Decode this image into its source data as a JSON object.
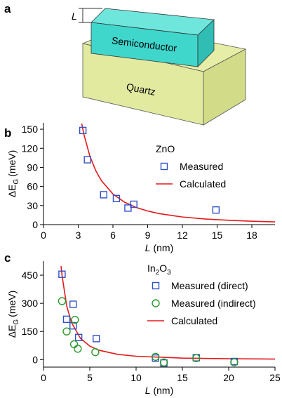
{
  "diagram": {
    "panel": "a",
    "length_label": "L",
    "top_block": "Semiconductor",
    "bottom_block": "Quartz"
  },
  "chart_data": [
    {
      "type": "scatter",
      "panel": "b",
      "xlabel": {
        "var": "L",
        "unit": "(nm)"
      },
      "ylabel": {
        "main": "ΔE",
        "sub": "G",
        "unit": "(meV)"
      },
      "legend_title_parts": [
        "ZnO"
      ],
      "xlim": [
        0,
        20
      ],
      "xticks": [
        0,
        3,
        6,
        9,
        12,
        15,
        18
      ],
      "ylim": [
        0,
        160
      ],
      "yticks": [
        0,
        30,
        60,
        90,
        120,
        150
      ],
      "series": [
        {
          "name": "Measured",
          "marker": "square",
          "color": "#3050c8",
          "x": [
            3.4,
            3.8,
            5.2,
            6.3,
            7.3,
            7.8,
            14.9
          ],
          "values": [
            148,
            102,
            47,
            41,
            26,
            32,
            23
          ]
        },
        {
          "name": "Calculated",
          "marker": "line",
          "color": "#e31a1c",
          "x": [
            3.3,
            3.5,
            4,
            4.5,
            5,
            6,
            7,
            8,
            9,
            10,
            12,
            14,
            16,
            18,
            20
          ],
          "values": [
            158.9,
            141.2,
            108.1,
            85.4,
            69.2,
            48.1,
            35.3,
            27.0,
            21.4,
            17.3,
            12.0,
            8.8,
            6.8,
            5.3,
            4.3
          ]
        }
      ]
    },
    {
      "type": "scatter",
      "panel": "c",
      "xlabel": {
        "var": "L",
        "unit": "(nm)"
      },
      "ylabel": {
        "main": "ΔE",
        "sub": "G",
        "unit": "(meV)"
      },
      "legend_title_parts": [
        "In",
        "2",
        "O",
        "3"
      ],
      "xlim": [
        0,
        25
      ],
      "xticks": [
        0,
        5,
        10,
        15,
        20,
        25
      ],
      "ylim": [
        -40,
        525
      ],
      "yticks": [
        0,
        150,
        300,
        450
      ],
      "series": [
        {
          "name": "Measured (direct)",
          "marker": "square",
          "color": "#3050c8",
          "x": [
            2.0,
            2.5,
            3.2,
            3.2,
            3.8,
            5.7,
            12.1,
            13.0,
            16.5,
            20.6
          ],
          "values": [
            455,
            215,
            295,
            180,
            118,
            112,
            8,
            -18,
            10,
            -10
          ]
        },
        {
          "name": "Measured (indirect)",
          "marker": "circle",
          "color": "#2a9a2a",
          "x": [
            2.0,
            2.5,
            3.3,
            3.4,
            3.7,
            5.6,
            12.1,
            13.0,
            16.5,
            20.6
          ],
          "values": [
            312,
            150,
            82,
            212,
            58,
            40,
            15,
            -15,
            8,
            -14
          ]
        },
        {
          "name": "Calculated",
          "marker": "line",
          "color": "#e31a1c",
          "x": [
            1.9,
            2,
            2.5,
            3,
            4,
            5,
            6,
            8,
            10,
            15,
            20,
            25
          ],
          "values": [
            498.6,
            450,
            288,
            200,
            112.5,
            72,
            50,
            28.1,
            18,
            8,
            4.5,
            2.9
          ]
        }
      ]
    }
  ]
}
